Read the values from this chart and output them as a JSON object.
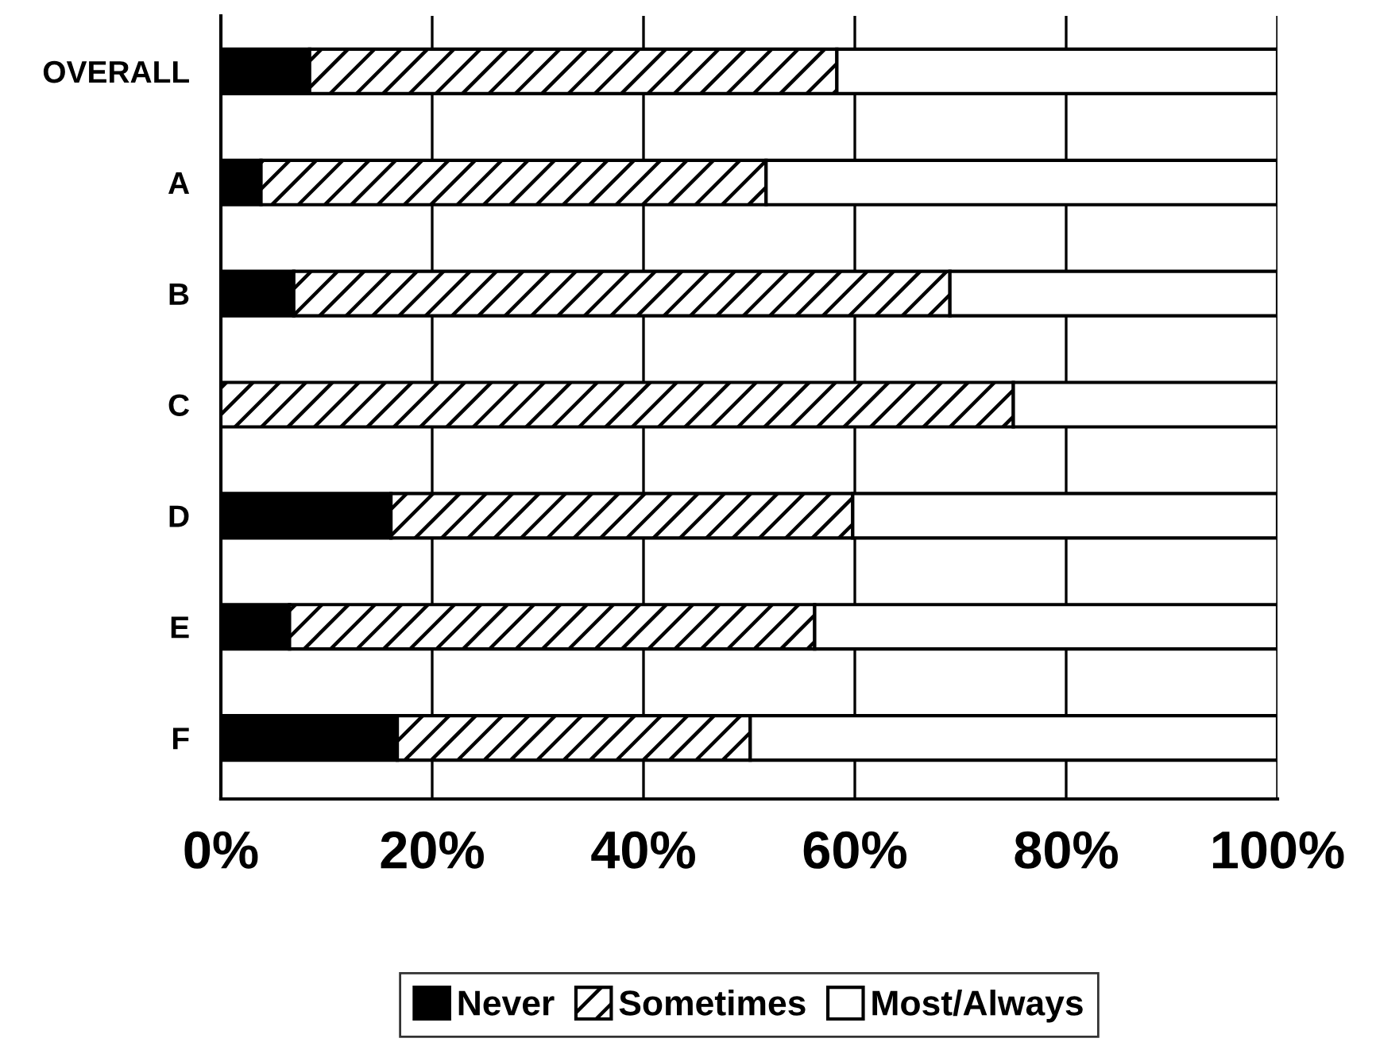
{
  "chart_data": {
    "type": "bar",
    "orientation": "horizontal",
    "stacked": true,
    "categories": [
      "OVERALL",
      "A",
      "B",
      "C",
      "D",
      "E",
      "F"
    ],
    "series": [
      {
        "name": "Never",
        "color": "#000000",
        "values": [
          8.4,
          3.8,
          6.9,
          0,
          16.1,
          6.5,
          16.7
        ]
      },
      {
        "name": "Sometimes",
        "color": "#000000",
        "values": [
          49.9,
          47.8,
          62.1,
          75.0,
          43.7,
          49.7,
          33.4
        ]
      },
      {
        "name": "Most/Always",
        "color": "#ffffff",
        "values": [
          41.7,
          48.4,
          31.0,
          25.0,
          40.2,
          43.8,
          49.9
        ]
      }
    ],
    "xlim": [
      0,
      100
    ],
    "xticks": [
      {
        "value": 0,
        "label": "0%"
      },
      {
        "value": 20,
        "label": "20%"
      },
      {
        "value": 40,
        "label": "40%"
      },
      {
        "value": 60,
        "label": "60%"
      },
      {
        "value": 80,
        "label": "80%"
      },
      {
        "value": 100,
        "label": "100%"
      }
    ],
    "grid": "x",
    "legend": "bottom"
  }
}
